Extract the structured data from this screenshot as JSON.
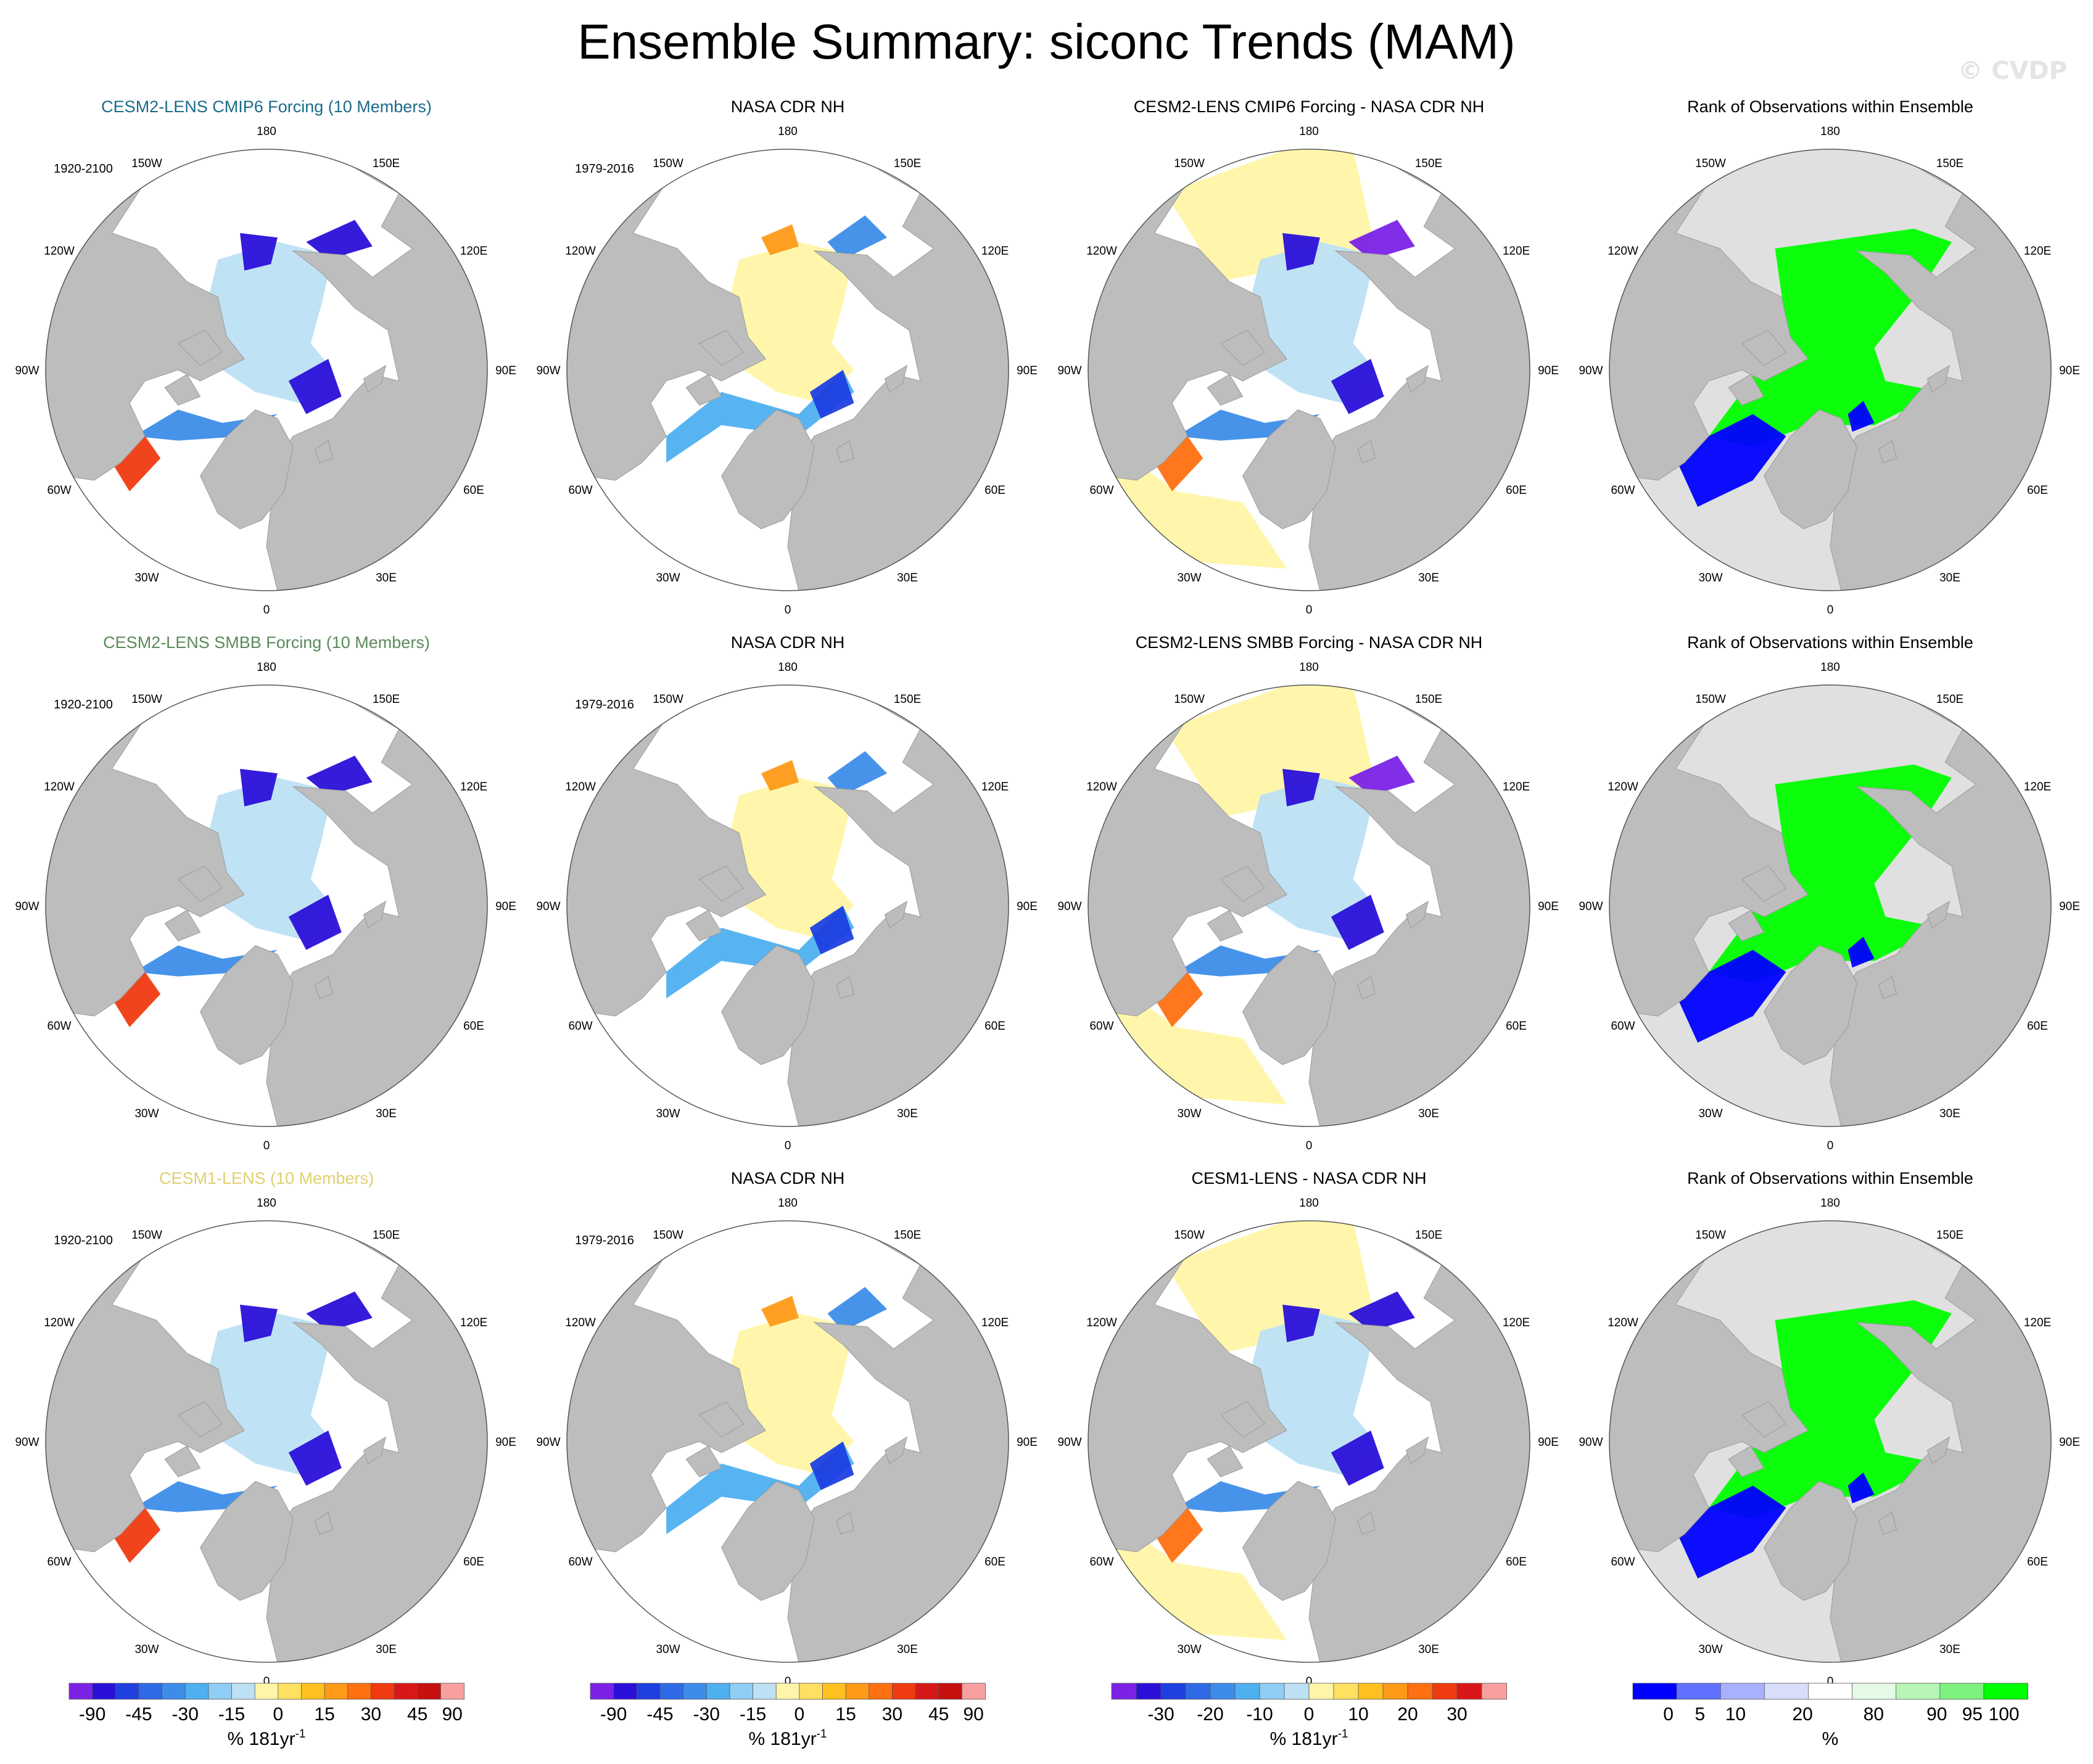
{
  "figure": {
    "title": "Ensemble Summary: siconc Trends (MAM)",
    "watermark": "© CVDP"
  },
  "longitude_labels": [
    "180",
    "150E",
    "120E",
    "90E",
    "60E",
    "30E",
    "0",
    "30W",
    "60W",
    "90W",
    "120W",
    "150W"
  ],
  "colors": {
    "land": "#bdbdbd",
    "ocean_bg": "#ffffff",
    "rank_bg": "#e0e0e0",
    "rank_high": "#00ff00",
    "rank_low": "#0000ff",
    "trend_scale": [
      "#7b22e6",
      "#2a10d8",
      "#1f3fe0",
      "#2f6ae6",
      "#3d8de8",
      "#4fb0f0",
      "#8fcdf4",
      "#bde0f4",
      "#fff5a8",
      "#ffe060",
      "#ffc020",
      "#ff9a18",
      "#ff7010",
      "#f03a10",
      "#d81818",
      "#c81010",
      "#f8a0a0"
    ],
    "rank_scale": [
      "#0000ff",
      "#6070ff",
      "#a8b0ff",
      "#d8ddfa",
      "#ffffff",
      "#e6fbe6",
      "#b6f5b6",
      "#7ef07e",
      "#00ff00"
    ]
  },
  "rows": [
    {
      "model_title": "CESM2-LENS CMIP6 Forcing (10 Members)",
      "title_color": "#1a6b8a",
      "model_period": "1920-2100",
      "obs_title": "NASA CDR NH",
      "obs_period": "1979-2016",
      "diff_title": "CESM2-LENS CMIP6 Forcing - NASA CDR NH",
      "rank_title": "Rank of Observations within Ensemble"
    },
    {
      "model_title": "CESM2-LENS SMBB Forcing (10 Members)",
      "title_color": "#5a8a5a",
      "model_period": "1920-2100",
      "obs_title": "NASA CDR NH",
      "obs_period": "1979-2016",
      "diff_title": "CESM2-LENS SMBB Forcing - NASA CDR NH",
      "rank_title": "Rank of Observations within Ensemble"
    },
    {
      "model_title": "CESM1-LENS (10 Members)",
      "title_color": "#e0cf70",
      "model_period": "1920-2100",
      "obs_title": "NASA CDR NH",
      "obs_period": "1979-2016",
      "diff_title": "CESM1-LENS - NASA CDR NH",
      "rank_title": "Rank of Observations within Ensemble"
    }
  ],
  "colorbars": [
    {
      "ticks": [
        "-90",
        "-45",
        "-30",
        "-15",
        "0",
        "15",
        "30",
        "45",
        "90"
      ],
      "label": "% 181yr",
      "label_sup": "-1",
      "scale": "trend"
    },
    {
      "ticks": [
        "-90",
        "-45",
        "-30",
        "-15",
        "0",
        "15",
        "30",
        "45",
        "90"
      ],
      "label": "% 181yr",
      "label_sup": "-1",
      "scale": "trend"
    },
    {
      "ticks": [
        "-30",
        "-20",
        "-10",
        "0",
        "10",
        "20",
        "30"
      ],
      "label": "% 181yr",
      "label_sup": "-1",
      "scale": "trend"
    },
    {
      "ticks": [
        "0",
        "5",
        "10",
        "20",
        "80",
        "90",
        "95",
        "100"
      ],
      "label": "%",
      "label_sup": "",
      "scale": "rank"
    }
  ],
  "chart_data": {
    "type": "heatmap",
    "title": "Ensemble Summary: siconc Trends (MAM)",
    "panel_layout": "3 rows x 4 columns of north polar stereographic maps",
    "columns": [
      "ensemble mean trend",
      "observed trend",
      "model minus observations",
      "rank of observations within ensemble"
    ],
    "trend_colorbar_ticks": [
      -90,
      -45,
      -30,
      -15,
      0,
      15,
      30,
      45,
      90
    ],
    "difference_colorbar_ticks": [
      -30,
      -20,
      -10,
      0,
      10,
      20,
      30
    ],
    "rank_colorbar_ticks": [
      0,
      5,
      10,
      20,
      80,
      90,
      95,
      100
    ],
    "units": "% 181yr-1",
    "rank_units": "%",
    "model_period": "1920-2100",
    "obs_period": "1979-2016"
  }
}
